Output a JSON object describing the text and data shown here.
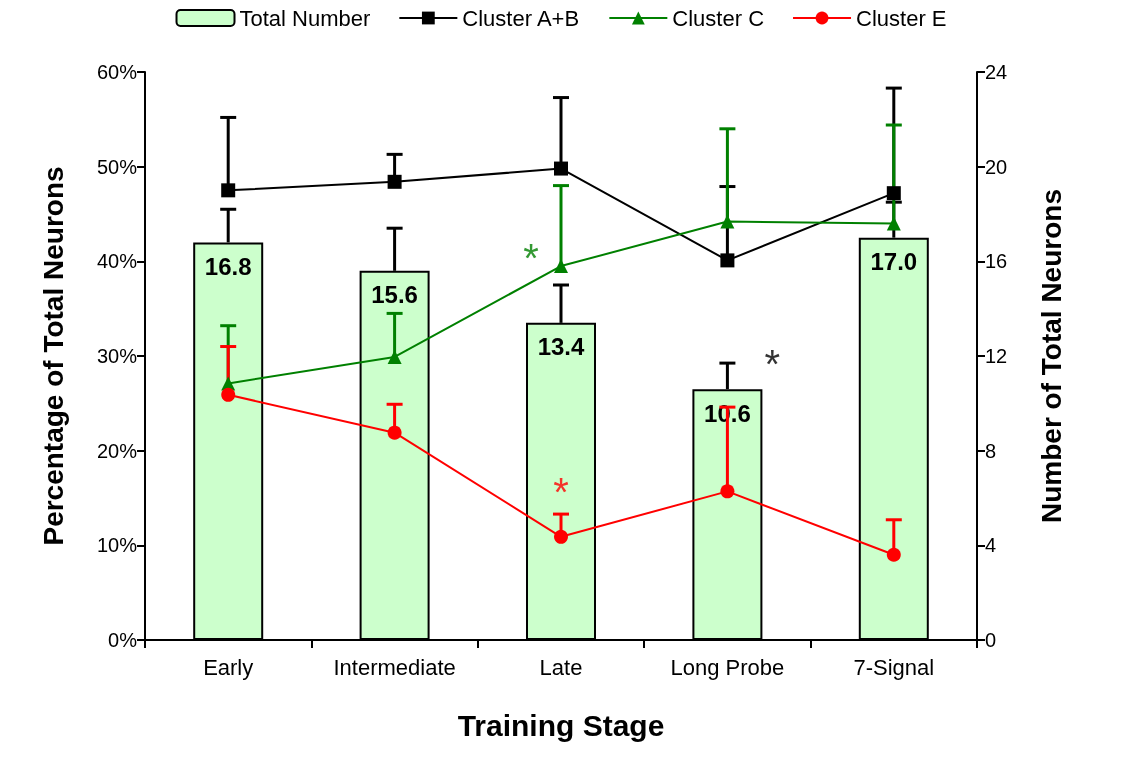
{
  "chart_data": {
    "type": "line",
    "xlabel": "Training Stage",
    "ylabel": "Percentage of Total Neurons",
    "y2label": "Number of Total Neurons",
    "categories": [
      "Early",
      "Intermediate",
      "Late",
      "Long Probe",
      "7-Signal"
    ],
    "series": [
      {
        "name": "Total Number",
        "type": "bar",
        "axis": "y2",
        "color": "#ccffcc",
        "values": [
          16.8,
          15.6,
          13.4,
          10.6,
          17.0
        ],
        "value_labels": [
          "16.8",
          "15.6",
          "13.4",
          "10.6",
          "17.0"
        ],
        "errors": [
          [
            16.8,
            18.2
          ],
          [
            15.6,
            17.4
          ],
          [
            13.4,
            15.0
          ],
          [
            10.6,
            11.7
          ],
          [
            17.0,
            18.5
          ]
        ]
      },
      {
        "name": "Cluster A+B",
        "color": "#000000",
        "marker": "square",
        "values": [
          47.5,
          48.4,
          49.8,
          40.1,
          47.2
        ],
        "errors": [
          [
            47.5,
            55.2
          ],
          [
            48.4,
            51.3
          ],
          [
            49.8,
            57.3
          ],
          [
            40.1,
            47.9
          ],
          [
            47.2,
            58.3
          ]
        ]
      },
      {
        "name": "Cluster C",
        "color": "#008000",
        "marker": "triangle",
        "values": [
          27.1,
          29.9,
          39.5,
          44.2,
          44.0
        ],
        "errors": [
          [
            27.1,
            33.2
          ],
          [
            29.9,
            34.5
          ],
          [
            39.5,
            48.0
          ],
          [
            44.2,
            54.0
          ],
          [
            44.0,
            54.4
          ]
        ]
      },
      {
        "name": "Cluster E",
        "color": "#ff0000",
        "marker": "circle",
        "values": [
          25.9,
          21.9,
          10.9,
          15.7,
          9.0
        ],
        "errors": [
          [
            25.9,
            31.0
          ],
          [
            21.9,
            24.9
          ],
          [
            10.9,
            13.3
          ],
          [
            15.7,
            24.6
          ],
          [
            9.0,
            12.7
          ]
        ]
      }
    ],
    "ylim": [
      0,
      60
    ],
    "yticks": [
      {
        "value": 0,
        "label": "0%"
      },
      {
        "value": 10,
        "label": "10%"
      },
      {
        "value": 20,
        "label": "20%"
      },
      {
        "value": 30,
        "label": "30%"
      },
      {
        "value": 40,
        "label": "40%"
      },
      {
        "value": 50,
        "label": "50%"
      },
      {
        "value": 60,
        "label": "60%"
      }
    ],
    "y2lim": [
      0,
      24
    ],
    "y2ticks": [
      0,
      4,
      8,
      12,
      16,
      20,
      24
    ],
    "annotations": [
      {
        "text": "*",
        "x": "Late",
        "y": 39.5
      },
      {
        "text": "*",
        "x": "Long Probe",
        "y": 29.2
      },
      {
        "text": "*",
        "x": "Late",
        "y": 13.3
      }
    ],
    "legend": "top",
    "grid": false,
    "line_style": "solid"
  }
}
